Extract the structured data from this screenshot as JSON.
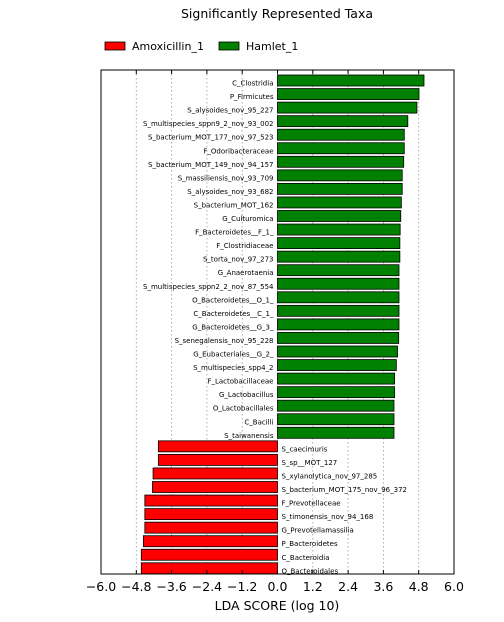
{
  "chart_data": {
    "type": "bar",
    "orientation": "horizontal",
    "title": "Significantly Represented Taxa",
    "xlabel": "LDA SCORE (log 10)",
    "ylabel": "",
    "xlim": [
      -6.0,
      6.0
    ],
    "xticks": [
      "−6.0",
      "−4.8",
      "−3.6",
      "−2.4",
      "−1.2",
      "0.0",
      "1.2",
      "2.4",
      "3.6",
      "4.8",
      "6.0"
    ],
    "grid": true,
    "legend_position": "top-left",
    "series": [
      {
        "name": "Amoxicillin_1",
        "color": "#ff0000"
      },
      {
        "name": "Hamlet_1",
        "color": "#008000"
      }
    ],
    "bars": [
      {
        "label": "C_Clostridia",
        "value": 4.98,
        "group": "Hamlet_1"
      },
      {
        "label": "P_Firmicutes",
        "value": 4.81,
        "group": "Hamlet_1"
      },
      {
        "label": "S_alysoides_nov_95_227",
        "value": 4.74,
        "group": "Hamlet_1"
      },
      {
        "label": "S_multispecies_sppn9_2_nov_93_002",
        "value": 4.43,
        "group": "Hamlet_1"
      },
      {
        "label": "S_bacterium_MOT_177_nov_97_523",
        "value": 4.31,
        "group": "Hamlet_1"
      },
      {
        "label": "F_Odoribacteraceae",
        "value": 4.31,
        "group": "Hamlet_1"
      },
      {
        "label": "S_bacterium_MOT_149_nov_94_157",
        "value": 4.29,
        "group": "Hamlet_1"
      },
      {
        "label": "S_massiliensis_nov_93_709",
        "value": 4.24,
        "group": "Hamlet_1"
      },
      {
        "label": "S_alysoides_nov_93_682",
        "value": 4.24,
        "group": "Hamlet_1"
      },
      {
        "label": "S_bacterium_MOT_162",
        "value": 4.21,
        "group": "Hamlet_1"
      },
      {
        "label": "G_Culturomica",
        "value": 4.19,
        "group": "Hamlet_1"
      },
      {
        "label": "F_Bacteroidetes__F_1_",
        "value": 4.17,
        "group": "Hamlet_1"
      },
      {
        "label": "F_Clostridiaceae",
        "value": 4.16,
        "group": "Hamlet_1"
      },
      {
        "label": "S_torta_nov_97_273",
        "value": 4.16,
        "group": "Hamlet_1"
      },
      {
        "label": "G_Anaerotaenia",
        "value": 4.13,
        "group": "Hamlet_1"
      },
      {
        "label": "S_multispecies_sppn2_2_nov_87_554",
        "value": 4.13,
        "group": "Hamlet_1"
      },
      {
        "label": "O_Bacteroidetes__O_1_",
        "value": 4.13,
        "group": "Hamlet_1"
      },
      {
        "label": "C_Bacteroidetes__C_1_",
        "value": 4.13,
        "group": "Hamlet_1"
      },
      {
        "label": "G_Bacteroidetes__G_3_",
        "value": 4.13,
        "group": "Hamlet_1"
      },
      {
        "label": "S_senegalensis_nov_95_228",
        "value": 4.12,
        "group": "Hamlet_1"
      },
      {
        "label": "G_Eubacteriales__G_2_",
        "value": 4.08,
        "group": "Hamlet_1"
      },
      {
        "label": "S_multispecies_spp4_2",
        "value": 4.04,
        "group": "Hamlet_1"
      },
      {
        "label": "F_Lactobacillaceae",
        "value": 3.98,
        "group": "Hamlet_1"
      },
      {
        "label": "G_Lactobacillus",
        "value": 3.98,
        "group": "Hamlet_1"
      },
      {
        "label": "O_Lactobacillales",
        "value": 3.96,
        "group": "Hamlet_1"
      },
      {
        "label": "C_Bacilli",
        "value": 3.96,
        "group": "Hamlet_1"
      },
      {
        "label": "S_taiwanensis",
        "value": 3.96,
        "group": "Hamlet_1"
      },
      {
        "label": "S_caecimuris",
        "value": -4.05,
        "group": "Amoxicillin_1"
      },
      {
        "label": "S_sp__MOT_127",
        "value": -4.05,
        "group": "Amoxicillin_1"
      },
      {
        "label": "S_xylanolytica_nov_97_285",
        "value": -4.23,
        "group": "Amoxicillin_1"
      },
      {
        "label": "S_bacterium_MOT_175_nov_96_372",
        "value": -4.25,
        "group": "Amoxicillin_1"
      },
      {
        "label": "F_Prevotellaceae",
        "value": -4.51,
        "group": "Amoxicillin_1"
      },
      {
        "label": "S_timonensis_nov_94_168",
        "value": -4.51,
        "group": "Amoxicillin_1"
      },
      {
        "label": "G_Prevotellamassilia",
        "value": -4.51,
        "group": "Amoxicillin_1"
      },
      {
        "label": "P_Bacteroidetes",
        "value": -4.56,
        "group": "Amoxicillin_1"
      },
      {
        "label": "C_Bacteroidia",
        "value": -4.63,
        "group": "Amoxicillin_1"
      },
      {
        "label": "O_Bacteroidales",
        "value": -4.63,
        "group": "Amoxicillin_1"
      }
    ]
  }
}
